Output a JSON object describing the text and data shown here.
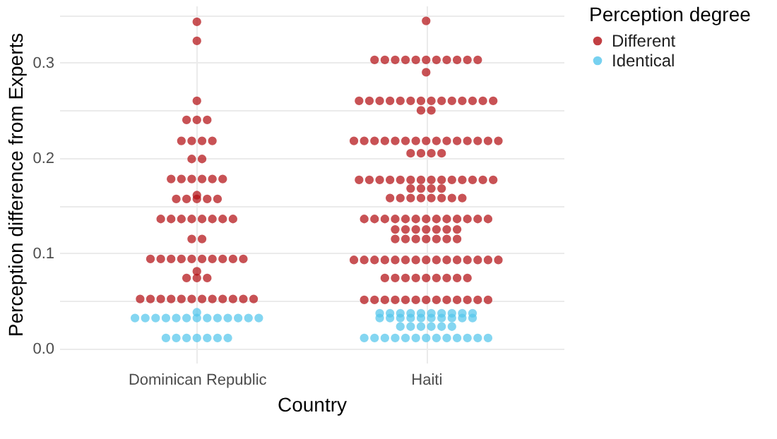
{
  "chart_data": {
    "type": "scatter",
    "xlabel": "Country",
    "ylabel": "Perception difference from Experts",
    "legend_title": "Perception degree",
    "categories": [
      "Dominican Republic",
      "Haiti"
    ],
    "ylim": [
      -0.015,
      0.36
    ],
    "yticks": [
      {
        "value": 0,
        "label": "0.0"
      },
      {
        "value": 0.05,
        "label": null
      },
      0.1,
      {
        "value": 0.15,
        "label": null
      },
      0.2,
      {
        "value": 0.25,
        "label": null
      },
      0.3,
      {
        "value": 0.35,
        "label": null
      }
    ],
    "grid": true,
    "legend": "right",
    "marker": "circle",
    "series": [
      {
        "name": "Different",
        "color": "#b30f14",
        "x": [
          "Dominican Republic",
          "Dominican Republic",
          "Dominican Republic",
          "Dominican Republic",
          "Dominican Republic",
          "Dominican Republic",
          "Dominican Republic",
          "Dominican Republic",
          "Dominican Republic",
          "Dominican Republic",
          "Dominican Republic",
          "Dominican Republic",
          "Dominican Republic",
          "Dominican Republic",
          "Dominican Republic",
          "Dominican Republic",
          "Dominican Republic",
          "Dominican Republic",
          "Dominican Republic",
          "Dominican Republic",
          "Dominican Republic",
          "Dominican Republic",
          "Dominican Republic",
          "Dominican Republic",
          "Dominican Republic",
          "Dominican Republic",
          "Dominican Republic",
          "Dominican Republic",
          "Dominican Republic",
          "Dominican Republic",
          "Dominican Republic",
          "Dominican Republic",
          "Dominican Republic",
          "Dominican Republic",
          "Dominican Republic",
          "Dominican Republic",
          "Dominican Republic",
          "Dominican Republic",
          "Dominican Republic",
          "Dominican Republic",
          "Dominican Republic",
          "Dominican Republic",
          "Dominican Republic",
          "Dominican Republic",
          "Dominican Republic",
          "Dominican Republic",
          "Dominican Republic",
          "Dominican Republic",
          "Dominican Republic",
          "Dominican Republic",
          "Dominican Republic",
          "Dominican Republic",
          "Dominican Republic",
          "Dominican Republic",
          "Dominican Republic",
          "Dominican Republic",
          "Dominican Republic",
          "Dominican Republic",
          "Dominican Republic",
          "Dominican Republic",
          "Haiti",
          "Haiti",
          "Haiti",
          "Haiti",
          "Haiti",
          "Haiti",
          "Haiti",
          "Haiti",
          "Haiti",
          "Haiti",
          "Haiti",
          "Haiti",
          "Haiti",
          "Haiti",
          "Haiti",
          "Haiti",
          "Haiti",
          "Haiti",
          "Haiti",
          "Haiti",
          "Haiti",
          "Haiti",
          "Haiti",
          "Haiti",
          "Haiti",
          "Haiti",
          "Haiti",
          "Haiti",
          "Haiti",
          "Haiti",
          "Haiti",
          "Haiti",
          "Haiti",
          "Haiti",
          "Haiti",
          "Haiti",
          "Haiti",
          "Haiti",
          "Haiti",
          "Haiti",
          "Haiti",
          "Haiti",
          "Haiti",
          "Haiti",
          "Haiti",
          "Haiti",
          "Haiti",
          "Haiti",
          "Haiti",
          "Haiti",
          "Haiti",
          "Haiti",
          "Haiti",
          "Haiti",
          "Haiti",
          "Haiti",
          "Haiti",
          "Haiti",
          "Haiti",
          "Haiti",
          "Haiti",
          "Haiti",
          "Haiti",
          "Haiti",
          "Haiti",
          "Haiti",
          "Haiti",
          "Haiti",
          "Haiti",
          "Haiti",
          "Haiti",
          "Haiti",
          "Haiti",
          "Haiti",
          "Haiti",
          "Haiti",
          "Haiti",
          "Haiti",
          "Haiti",
          "Haiti",
          "Haiti",
          "Haiti",
          "Haiti",
          "Haiti",
          "Haiti",
          "Haiti",
          "Haiti",
          "Haiti",
          "Haiti",
          "Haiti",
          "Haiti",
          "Haiti",
          "Haiti",
          "Haiti",
          "Haiti",
          "Haiti",
          "Haiti",
          "Haiti",
          "Haiti",
          "Haiti",
          "Haiti",
          "Haiti",
          "Haiti",
          "Haiti",
          "Haiti",
          "Haiti",
          "Haiti",
          "Haiti",
          "Haiti",
          "Haiti",
          "Haiti",
          "Haiti",
          "Haiti",
          "Haiti",
          "Haiti",
          "Haiti",
          "Haiti",
          "Haiti",
          "Haiti",
          "Haiti",
          "Haiti",
          "Haiti",
          "Haiti",
          "Haiti",
          "Haiti",
          "Haiti",
          "Haiti",
          "Haiti",
          "Haiti",
          "Haiti",
          "Haiti",
          "Haiti",
          "Haiti",
          "Haiti",
          "Haiti",
          "Haiti",
          "Haiti",
          "Haiti"
        ],
        "values": [
          0.343,
          0.323,
          0.26,
          0.24,
          0.24,
          0.24,
          0.218,
          0.218,
          0.218,
          0.218,
          0.199,
          0.199,
          0.178,
          0.178,
          0.178,
          0.178,
          0.178,
          0.178,
          0.157,
          0.157,
          0.157,
          0.157,
          0.157,
          0.161,
          0.136,
          0.136,
          0.136,
          0.136,
          0.136,
          0.136,
          0.136,
          0.136,
          0.115,
          0.115,
          0.094,
          0.094,
          0.094,
          0.094,
          0.094,
          0.094,
          0.094,
          0.094,
          0.094,
          0.094,
          0.081,
          0.074,
          0.074,
          0.074,
          0.052,
          0.052,
          0.052,
          0.052,
          0.052,
          0.052,
          0.052,
          0.052,
          0.052,
          0.052,
          0.052,
          0.052,
          0.344,
          0.303,
          0.303,
          0.303,
          0.303,
          0.303,
          0.303,
          0.303,
          0.303,
          0.303,
          0.303,
          0.303,
          0.29,
          0.26,
          0.26,
          0.26,
          0.26,
          0.26,
          0.26,
          0.26,
          0.26,
          0.26,
          0.26,
          0.26,
          0.26,
          0.26,
          0.26,
          0.25,
          0.25,
          0.218,
          0.218,
          0.218,
          0.218,
          0.218,
          0.218,
          0.218,
          0.218,
          0.218,
          0.218,
          0.218,
          0.218,
          0.218,
          0.218,
          0.218,
          0.205,
          0.205,
          0.205,
          0.205,
          0.177,
          0.177,
          0.177,
          0.177,
          0.177,
          0.177,
          0.177,
          0.177,
          0.177,
          0.177,
          0.177,
          0.177,
          0.177,
          0.177,
          0.168,
          0.168,
          0.168,
          0.168,
          0.158,
          0.158,
          0.158,
          0.158,
          0.158,
          0.158,
          0.158,
          0.158,
          0.136,
          0.136,
          0.136,
          0.136,
          0.136,
          0.136,
          0.136,
          0.136,
          0.136,
          0.136,
          0.136,
          0.136,
          0.136,
          0.125,
          0.125,
          0.125,
          0.125,
          0.125,
          0.125,
          0.125,
          0.115,
          0.115,
          0.115,
          0.115,
          0.115,
          0.115,
          0.115,
          0.093,
          0.093,
          0.093,
          0.093,
          0.093,
          0.093,
          0.093,
          0.093,
          0.093,
          0.093,
          0.093,
          0.093,
          0.093,
          0.093,
          0.093,
          0.074,
          0.074,
          0.074,
          0.074,
          0.074,
          0.074,
          0.074,
          0.074,
          0.074,
          0.051,
          0.051,
          0.051,
          0.051,
          0.051,
          0.051,
          0.051,
          0.051,
          0.051,
          0.051,
          0.051,
          0.051,
          0.051
        ]
      },
      {
        "name": "Identical",
        "color": "#55c6ec",
        "x": [
          "Dominican Republic",
          "Dominican Republic",
          "Dominican Republic",
          "Dominican Republic",
          "Dominican Republic",
          "Dominican Republic",
          "Dominican Republic",
          "Dominican Republic",
          "Dominican Republic",
          "Dominican Republic",
          "Dominican Republic",
          "Dominican Republic",
          "Dominican Republic",
          "Dominican Republic",
          "Dominican Republic",
          "Dominican Republic",
          "Dominican Republic",
          "Dominican Republic",
          "Dominican Republic",
          "Dominican Republic",
          "Dominican Republic",
          "Haiti",
          "Haiti",
          "Haiti",
          "Haiti",
          "Haiti",
          "Haiti",
          "Haiti",
          "Haiti",
          "Haiti",
          "Haiti",
          "Haiti",
          "Haiti",
          "Haiti",
          "Haiti",
          "Haiti",
          "Haiti",
          "Haiti",
          "Haiti",
          "Haiti",
          "Haiti",
          "Haiti",
          "Haiti",
          "Haiti",
          "Haiti",
          "Haiti",
          "Haiti",
          "Haiti",
          "Haiti",
          "Haiti",
          "Haiti",
          "Haiti",
          "Haiti",
          "Haiti",
          "Haiti",
          "Haiti",
          "Haiti",
          "Haiti",
          "Haiti",
          "Haiti"
        ],
        "values": [
          0.038,
          0.032,
          0.032,
          0.032,
          0.032,
          0.032,
          0.032,
          0.032,
          0.032,
          0.032,
          0.032,
          0.032,
          0.032,
          0.032,
          0.011,
          0.011,
          0.011,
          0.011,
          0.011,
          0.011,
          0.011,
          0.037,
          0.037,
          0.037,
          0.037,
          0.037,
          0.037,
          0.037,
          0.037,
          0.037,
          0.037,
          0.032,
          0.032,
          0.032,
          0.032,
          0.032,
          0.032,
          0.032,
          0.032,
          0.032,
          0.032,
          0.023,
          0.023,
          0.023,
          0.023,
          0.023,
          0.023,
          0.011,
          0.011,
          0.011,
          0.011,
          0.011,
          0.011,
          0.011,
          0.011,
          0.011,
          0.011,
          0.011,
          0.011,
          0.011
        ]
      }
    ]
  }
}
